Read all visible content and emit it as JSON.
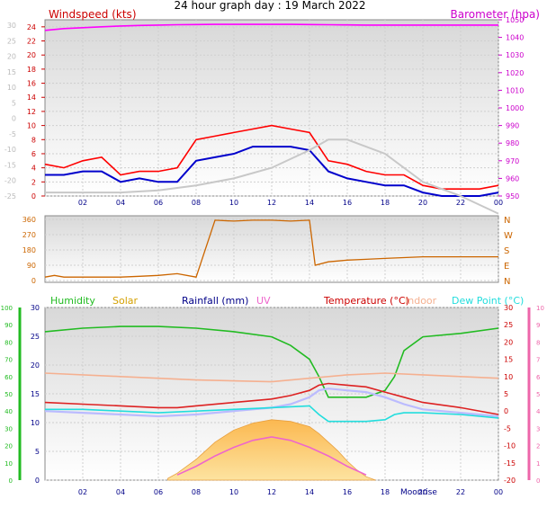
{
  "title": "24 hour graph day : 19 March 2022",
  "x_ticks": [
    "02",
    "04",
    "06",
    "08",
    "10",
    "12",
    "14",
    "16",
    "18",
    "20",
    "22",
    "00"
  ],
  "chart_data": [
    {
      "id": "wind",
      "type": "line",
      "left_label": "Windspeed (kts)",
      "right_label": "Barometer (hpa)",
      "left_ticks": [
        "0",
        "2",
        "4",
        "6",
        "8",
        "10",
        "12",
        "14",
        "16",
        "18",
        "20",
        "22",
        "24"
      ],
      "right_ticks": [
        "950",
        "960",
        "970",
        "980",
        "990",
        "1000",
        "1010",
        "1020",
        "1030",
        "1040",
        "1050"
      ],
      "faded_ticks": [
        "-25",
        "-20",
        "-15",
        "-10",
        "-5",
        "0",
        "5",
        "10",
        "15",
        "20",
        "25",
        "30"
      ],
      "x_range_hours": [
        0,
        24
      ],
      "ylim_kts": [
        0,
        25
      ],
      "ylim_hpa": [
        950,
        1050
      ],
      "grid": true,
      "series": [
        {
          "key": "gust",
          "color": "#ff0000",
          "x": [
            0,
            1,
            2,
            3,
            4,
            5,
            6,
            7,
            8,
            9,
            10,
            11,
            12,
            13,
            14,
            15,
            16,
            17,
            18,
            19,
            20,
            21,
            22,
            23,
            24
          ],
          "values": [
            4.5,
            4,
            5,
            5.5,
            3,
            3.5,
            3.5,
            4,
            8,
            8.5,
            9,
            9.5,
            10,
            9.5,
            9,
            5,
            4.5,
            3.5,
            3,
            3,
            1.5,
            1,
            1,
            1,
            1.5
          ]
        },
        {
          "key": "speed",
          "color": "#0000cc",
          "x": [
            0,
            1,
            2,
            3,
            4,
            5,
            6,
            7,
            8,
            9,
            10,
            11,
            12,
            13,
            14,
            15,
            16,
            17,
            18,
            19,
            20,
            21,
            22,
            23,
            24
          ],
          "values": [
            3,
            3,
            3.5,
            3.5,
            2,
            2.5,
            2,
            2,
            5,
            5.5,
            6,
            7,
            7,
            7,
            6.5,
            3.5,
            2.5,
            2,
            1.5,
            1.5,
            0.5,
            0,
            0,
            0,
            0.5
          ]
        },
        {
          "key": "pressure",
          "color": "#ff00ff",
          "x": [
            0,
            1,
            2,
            3,
            4,
            5,
            6,
            7,
            8,
            9,
            10,
            11,
            12,
            13,
            14,
            15,
            16,
            17,
            18,
            19,
            20,
            21,
            22,
            23,
            24
          ],
          "values": [
            1044,
            1045,
            1045.5,
            1046,
            1046.5,
            1046.8,
            1047,
            1047.2,
            1047.3,
            1047.4,
            1047.4,
            1047.4,
            1047.4,
            1047.4,
            1047.3,
            1047.2,
            1047.1,
            1047,
            1047,
            1047,
            1047,
            1047,
            1047,
            1047,
            1047
          ]
        },
        {
          "key": "faded",
          "color": "#c8c8c8",
          "x": [
            0,
            2,
            4,
            6,
            8,
            10,
            12,
            14,
            15,
            16,
            18,
            20,
            22,
            24
          ],
          "values": [
            0.5,
            0.5,
            0.5,
            0.8,
            1.5,
            2.5,
            4,
            6.5,
            8,
            8,
            6,
            2,
            0,
            -2.5
          ]
        }
      ]
    },
    {
      "id": "direction",
      "type": "line",
      "left_ticks": [
        "0",
        "90",
        "180",
        "270",
        "360"
      ],
      "right_labels": [
        "N",
        "E",
        "S",
        "W",
        "N"
      ],
      "ylim": [
        0,
        360
      ],
      "grid": true,
      "series": [
        {
          "key": "bearing",
          "color": "#cc6600",
          "x": [
            0,
            0.5,
            1,
            2,
            3,
            4,
            5,
            6,
            7,
            8,
            9,
            10,
            11,
            12,
            13,
            14,
            14.3,
            15,
            16,
            17,
            18,
            19,
            20,
            21,
            22,
            23,
            24
          ],
          "values": [
            20,
            30,
            20,
            20,
            20,
            20,
            25,
            30,
            40,
            20,
            355,
            350,
            355,
            355,
            350,
            355,
            90,
            110,
            120,
            125,
            130,
            135,
            140,
            140,
            140,
            140,
            140
          ]
        }
      ]
    },
    {
      "id": "temp",
      "type": "line",
      "top_labels": [
        "Humidity",
        "Solar",
        "Rainfall (mm)",
        "UV",
        "Temperature (°C)",
        "Indoor",
        "Dew Point (°C)"
      ],
      "left_ticks": [
        "0",
        "5",
        "10",
        "15",
        "20",
        "25",
        "30"
      ],
      "left2_ticks": [
        "0",
        "10",
        "20",
        "30",
        "40",
        "50",
        "60",
        "70",
        "80",
        "90",
        "100"
      ],
      "right_ticks": [
        "-20",
        "-15",
        "-10",
        "-5",
        "0",
        "5",
        "10",
        "15",
        "20",
        "25",
        "30"
      ],
      "right2_ticks": [
        "0",
        "1",
        "2",
        "3",
        "4",
        "5",
        "6",
        "7",
        "8",
        "9",
        "10"
      ],
      "moon_label": "Moonrise",
      "ylim_c": [
        -20,
        30
      ],
      "ylim_pct": [
        0,
        100
      ],
      "grid": true,
      "series": [
        {
          "key": "humidity",
          "color": "#22bb22",
          "unit": "%",
          "x": [
            0,
            2,
            4,
            6,
            8,
            10,
            12,
            13,
            14,
            14.5,
            15,
            16,
            17,
            18,
            18.5,
            19,
            20,
            22,
            24
          ],
          "values": [
            86,
            88,
            89,
            89,
            88,
            86,
            83,
            78,
            70,
            60,
            48,
            48,
            48,
            52,
            60,
            75,
            83,
            85,
            88
          ]
        },
        {
          "key": "temperature",
          "color": "#dd2222",
          "unit": "C",
          "x": [
            0,
            2,
            4,
            6,
            7,
            8,
            10,
            12,
            13,
            14,
            14.5,
            15,
            16,
            17,
            18,
            19,
            20,
            22,
            24
          ],
          "values": [
            2.5,
            2,
            1.5,
            1,
            1,
            1.5,
            2.5,
            3.5,
            4.5,
            6,
            7.5,
            8,
            7.5,
            7,
            5.5,
            4,
            2.5,
            1,
            -1
          ]
        },
        {
          "key": "indoor",
          "color": "#f5b090",
          "unit": "C",
          "x": [
            0,
            4,
            8,
            12,
            14,
            16,
            18,
            20,
            22,
            24
          ],
          "values": [
            11,
            10,
            9,
            8.5,
            9.5,
            10.5,
            11,
            10.5,
            10,
            9.5
          ]
        },
        {
          "key": "windchill",
          "color": "#bbbbff",
          "unit": "C",
          "x": [
            0,
            2,
            4,
            6,
            8,
            10,
            12,
            13,
            14,
            14.5,
            15,
            16,
            17,
            18,
            19,
            20,
            22,
            24
          ],
          "values": [
            0,
            -0.5,
            -1,
            -1.5,
            -1,
            0,
            1,
            2,
            4,
            6,
            6.5,
            6,
            5.5,
            4,
            2,
            0.5,
            -0.5,
            -1.5
          ]
        },
        {
          "key": "dewpoint",
          "color": "#22dddd",
          "unit": "C",
          "x": [
            0,
            2,
            4,
            6,
            8,
            10,
            12,
            14,
            14.5,
            15,
            16,
            17,
            18,
            18.5,
            19,
            20,
            22,
            24
          ],
          "values": [
            0.5,
            0.5,
            0,
            -0.5,
            0,
            0.5,
            1,
            1.5,
            -1,
            -3,
            -3,
            -3,
            -2.5,
            -1,
            -0.5,
            -0.5,
            -1,
            -2
          ]
        },
        {
          "key": "solar",
          "color": "#f0a020",
          "unit": "pct",
          "x": [
            6.5,
            7,
            8,
            9,
            10,
            11,
            12,
            13,
            14,
            14.5,
            15,
            15.2,
            15.5,
            16,
            16.5,
            17,
            17.5
          ],
          "values": [
            1,
            4,
            12,
            22,
            29,
            33,
            35,
            34,
            31,
            27,
            22,
            20,
            17,
            11,
            6,
            2,
            0
          ]
        },
        {
          "key": "uv",
          "color": "#ee66cc",
          "unit": "pct",
          "x": [
            7,
            8,
            9,
            10,
            11,
            12,
            13,
            14,
            15,
            16,
            17
          ],
          "values": [
            3,
            8,
            14,
            19,
            23,
            25,
            23,
            19,
            14,
            8,
            3
          ]
        }
      ]
    }
  ]
}
